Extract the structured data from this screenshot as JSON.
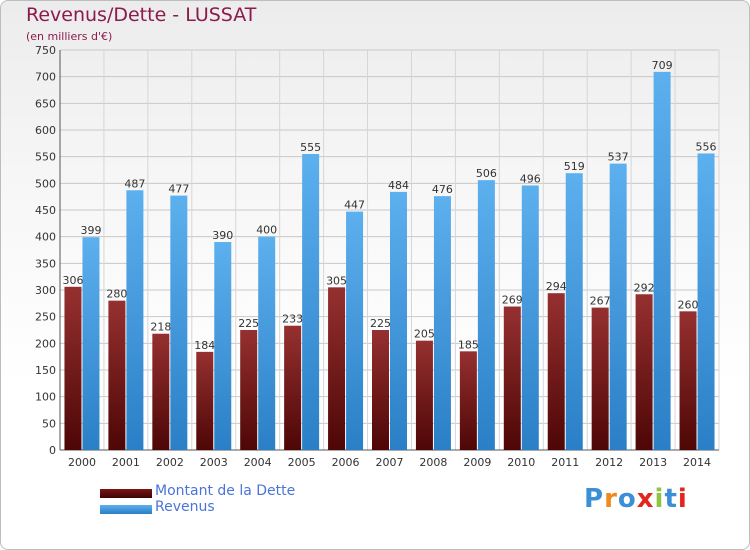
{
  "header": {
    "title": "Revenus/Dette - LUSSAT",
    "subtitle": "(en milliers d'€)"
  },
  "legend": {
    "items": [
      {
        "label": "Montant de la Dette",
        "color": "#7a1616"
      },
      {
        "label": "Revenus",
        "color": "#4aa3e8"
      }
    ]
  },
  "logo": {
    "text": "Proxiti",
    "colors": [
      "#3b8fd6",
      "#f08a1c",
      "#3b8fd6",
      "#e2261d",
      "#8cc63f",
      "#3b8fd6",
      "#e2261d"
    ]
  },
  "chart_data": {
    "type": "bar",
    "categories": [
      "2000",
      "2001",
      "2002",
      "2003",
      "2004",
      "2005",
      "2006",
      "2007",
      "2008",
      "2009",
      "2010",
      "2011",
      "2012",
      "2013",
      "2014"
    ],
    "series": [
      {
        "name": "Montant de la Dette",
        "color": "#7a1616",
        "values": [
          306,
          280,
          218,
          184,
          225,
          233,
          305,
          225,
          205,
          185,
          269,
          294,
          267,
          292,
          260
        ]
      },
      {
        "name": "Revenus",
        "color": "#4aa3e8",
        "values": [
          399,
          487,
          477,
          390,
          400,
          555,
          447,
          484,
          476,
          506,
          496,
          519,
          537,
          709,
          556
        ]
      }
    ],
    "ylim": [
      0,
      750
    ],
    "yticks": [
      0,
      50,
      100,
      150,
      200,
      250,
      300,
      350,
      400,
      450,
      500,
      550,
      600,
      650,
      700,
      750
    ],
    "grid": true,
    "legend_position": "bottom-left"
  }
}
